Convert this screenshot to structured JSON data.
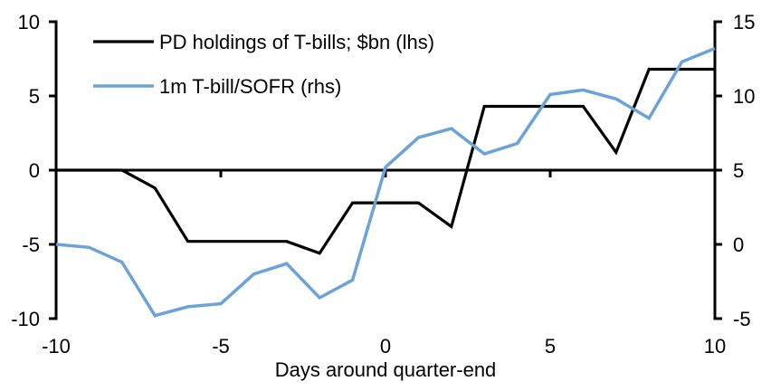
{
  "chart_data": {
    "type": "line",
    "title": "",
    "xlabel": "Days around quarter-end",
    "ylabel_left": "",
    "ylabel_right": "",
    "grid": false,
    "legend_position": "top-left-inside",
    "x": [
      -10,
      -9,
      -8,
      -7,
      -6,
      -5,
      -4,
      -3,
      -2,
      -1,
      0,
      1,
      2,
      3,
      4,
      5,
      6,
      7,
      8,
      9,
      10
    ],
    "xlim": [
      -10,
      10
    ],
    "axes": {
      "left": {
        "ticks": [
          10,
          5,
          0,
          -5,
          -10
        ],
        "range": [
          -10,
          10
        ]
      },
      "right": {
        "ticks": [
          15,
          10,
          5,
          0,
          -5
        ],
        "range": [
          -5,
          15
        ]
      },
      "x": {
        "ticks": [
          -10,
          -5,
          0,
          5,
          10
        ]
      }
    },
    "series": [
      {
        "key": "pd-holdings",
        "name": "PD holdings of T-bills; $bn (lhs)",
        "axis": "left",
        "color": "#000000",
        "values": [
          0,
          0,
          0,
          -1.2,
          -4.8,
          -4.8,
          -4.8,
          -4.8,
          -5.6,
          -2.2,
          -2.2,
          -2.2,
          -3.8,
          4.3,
          4.3,
          4.3,
          4.3,
          1.2,
          6.8,
          6.8,
          6.8
        ]
      },
      {
        "key": "tbill-sofr",
        "name": "1m T-bill/SOFR (rhs)",
        "axis": "right",
        "color": "#6BA2D8",
        "values": [
          0,
          -0.2,
          -1.2,
          -4.8,
          -4.2,
          -4.0,
          -2.0,
          -1.3,
          -3.6,
          -2.4,
          5.2,
          7.2,
          7.8,
          6.1,
          6.8,
          10.1,
          10.4,
          9.8,
          8.5,
          12.3,
          13.2
        ]
      }
    ]
  },
  "colors": {
    "axis": "#000000",
    "background": "#ffffff"
  }
}
